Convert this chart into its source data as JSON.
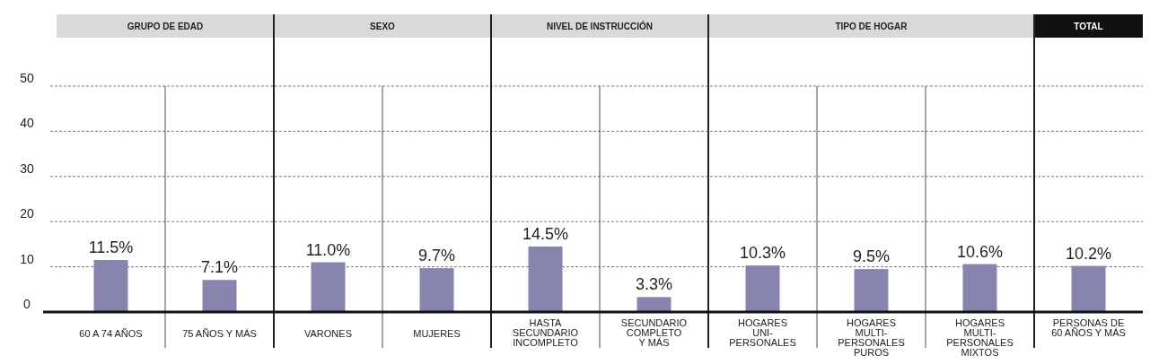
{
  "chart_data": {
    "type": "bar",
    "categories": [
      "60 A 74 AÑOS",
      "75 AÑOS Y MÁS",
      "VARONES",
      "MUJERES",
      "HASTA\nSECUNDARIO\nINCOMPLETO",
      "SECUNDARIO\nCOMPLETO\nY MÁS",
      "HOGARES\nUNI-\nPERSONALES",
      "HOGARES\nMULTI-\nPERSONALES\nPUROS",
      "HOGARES\nMULTI-\nPERSONALES\nMIXTOS",
      "PERSONAS DE\n60 AÑOS Y MÁS"
    ],
    "values": [
      11.5,
      7.1,
      11.0,
      9.7,
      14.5,
      3.3,
      10.3,
      9.5,
      10.6,
      10.2
    ],
    "value_labels": [
      "11.5%",
      "7.1%",
      "11.0%",
      "9.7%",
      "14.5%",
      "3.3%",
      "10.3%",
      "9.5%",
      "10.6%",
      "10.2%"
    ],
    "color": "#8884b0",
    "ylim": [
      0,
      50
    ],
    "yticks": [
      0,
      10,
      20,
      30,
      40,
      50
    ],
    "grid": "y",
    "annotations": [
      "GRUPO DE EDAD",
      "SEXO",
      "NIVEL DE INSTRUCCIÓN",
      "TIPO DE HOGAR",
      "TOTAL"
    ]
  }
}
